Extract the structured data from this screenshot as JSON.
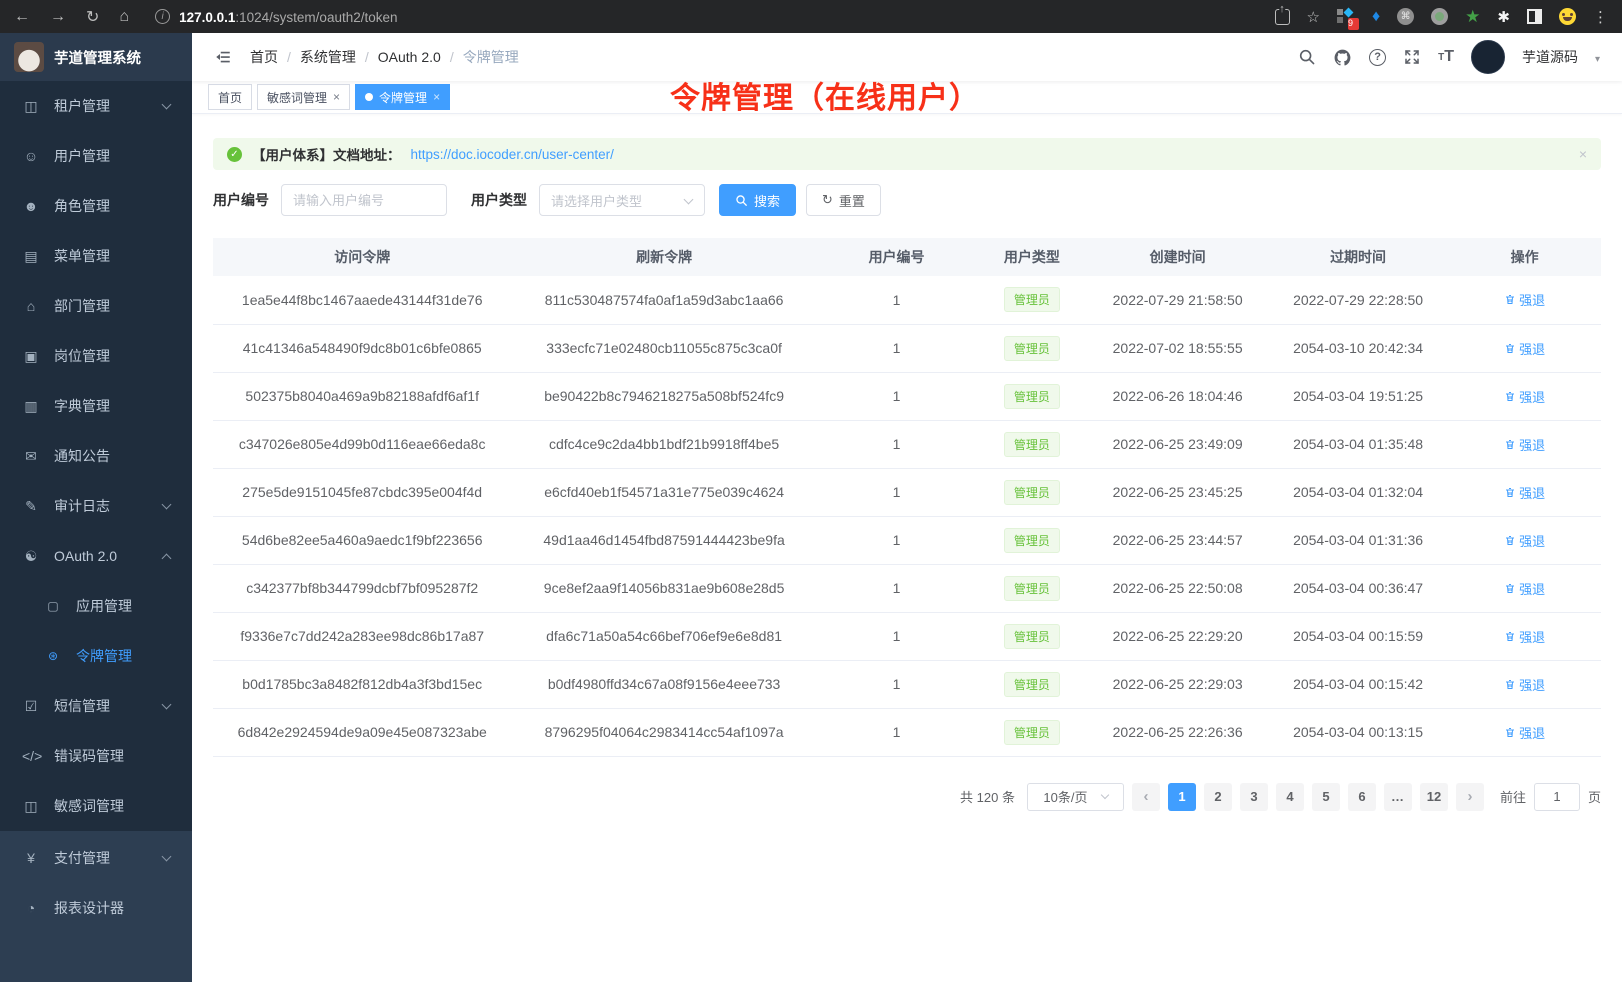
{
  "colors": {
    "accent": "#409eff",
    "success": "#67c23a",
    "annotation_red": "#f73018",
    "sidebar_bg": "#1f2d3d",
    "sidebar_bottom_bg": "#2d3e52"
  },
  "icons": {
    "back": "←",
    "forward": "→",
    "reload": "↻",
    "home": "⌂",
    "info": "i",
    "star": "☆",
    "kebab": "⋮",
    "close": "×",
    "prev": "‹",
    "next": "›",
    "check": "✓",
    "question": "?",
    "caret": "▾",
    "gem": "♦",
    "green_star": "★",
    "white_flower": "✱",
    "cmd": "⌘",
    "search_btn": "⌕",
    "reset_btn": "↻",
    "trash": "⌫"
  },
  "browser": {
    "url_host": "127.0.0.1",
    "url_path": ":1024/system/oauth2/token",
    "extension_badge": "9"
  },
  "sidebar": {
    "logo_title": "芋道管理系统",
    "items": [
      {
        "id": "tenant",
        "glyph": "◫",
        "label": "租户管理",
        "chevron": "down"
      },
      {
        "id": "user",
        "glyph": "☺",
        "label": "用户管理"
      },
      {
        "id": "role",
        "glyph": "☻",
        "label": "角色管理"
      },
      {
        "id": "menu",
        "glyph": "▤",
        "label": "菜单管理"
      },
      {
        "id": "dept",
        "glyph": "⌂",
        "label": "部门管理"
      },
      {
        "id": "post",
        "glyph": "▣",
        "label": "岗位管理"
      },
      {
        "id": "dict",
        "glyph": "▥",
        "label": "字典管理"
      },
      {
        "id": "notice",
        "glyph": "✉",
        "label": "通知公告"
      },
      {
        "id": "audit-log",
        "glyph": "✎",
        "label": "审计日志",
        "chevron": "down"
      },
      {
        "id": "oauth2",
        "glyph": "☯",
        "label": "OAuth 2.0",
        "chevron": "up"
      },
      {
        "id": "oauth2-app",
        "glyph": "▢",
        "label": "应用管理",
        "child": true
      },
      {
        "id": "oauth2-token",
        "glyph": "⊛",
        "label": "令牌管理",
        "child": true,
        "active": true
      },
      {
        "id": "sms",
        "glyph": "☑",
        "label": "短信管理",
        "chevron": "down"
      },
      {
        "id": "error-code",
        "glyph": "</>",
        "label": "错误码管理"
      },
      {
        "id": "sensitive-word",
        "glyph": "◫",
        "label": "敏感词管理"
      },
      {
        "id": "pay",
        "glyph": "¥",
        "label": "支付管理",
        "chevron": "down",
        "section": "bottom"
      },
      {
        "id": "report-designer",
        "glyph": "◔",
        "label": "报表设计器",
        "section": "bottom"
      }
    ]
  },
  "header": {
    "breadcrumb": [
      "首页",
      "系统管理",
      "OAuth 2.0",
      "令牌管理"
    ],
    "breadcrumb_separator": "/",
    "username": "芋道源码"
  },
  "tabs": [
    {
      "label": "首页",
      "closable": false,
      "active": false
    },
    {
      "label": "敏感词管理",
      "closable": true,
      "active": false
    },
    {
      "label": "令牌管理",
      "closable": true,
      "active": true
    }
  ],
  "annotation": "令牌管理（在线用户）",
  "alert": {
    "text": "【用户体系】文档地址：",
    "link": "https://doc.iocoder.cn/user-center/"
  },
  "filters": {
    "user_id_label": "用户编号",
    "user_id_placeholder": "请输入用户编号",
    "user_type_label": "用户类型",
    "user_type_placeholder": "请选择用户类型",
    "search_label": "搜索",
    "reset_label": "重置"
  },
  "table": {
    "headers": [
      "访问令牌",
      "刷新令牌",
      "用户编号",
      "用户类型",
      "创建时间",
      "过期时间",
      "操作"
    ],
    "action_label": "强退",
    "rows": [
      {
        "access": "1ea5e44f8bc1467aaede43144f31de76",
        "refresh": "811c530487574fa0af1a59d3abc1aa66",
        "user_id": "1",
        "user_type": "管理员",
        "created": "2022-07-29 21:58:50",
        "expires": "2022-07-29 22:28:50"
      },
      {
        "access": "41c41346a548490f9dc8b01c6bfe0865",
        "refresh": "333ecfc71e02480cb11055c875c3ca0f",
        "user_id": "1",
        "user_type": "管理员",
        "created": "2022-07-02 18:55:55",
        "expires": "2054-03-10 20:42:34"
      },
      {
        "access": "502375b8040a469a9b82188afdf6af1f",
        "refresh": "be90422b8c7946218275a508bf524fc9",
        "user_id": "1",
        "user_type": "管理员",
        "created": "2022-06-26 18:04:46",
        "expires": "2054-03-04 19:51:25"
      },
      {
        "access": "c347026e805e4d99b0d116eae66eda8c",
        "refresh": "cdfc4ce9c2da4bb1bdf21b9918ff4be5",
        "user_id": "1",
        "user_type": "管理员",
        "created": "2022-06-25 23:49:09",
        "expires": "2054-03-04 01:35:48"
      },
      {
        "access": "275e5de9151045fe87cbdc395e004f4d",
        "refresh": "e6cfd40eb1f54571a31e775e039c4624",
        "user_id": "1",
        "user_type": "管理员",
        "created": "2022-06-25 23:45:25",
        "expires": "2054-03-04 01:32:04"
      },
      {
        "access": "54d6be82ee5a460a9aedc1f9bf223656",
        "refresh": "49d1aa46d1454fbd87591444423be9fa",
        "user_id": "1",
        "user_type": "管理员",
        "created": "2022-06-25 23:44:57",
        "expires": "2054-03-04 01:31:36"
      },
      {
        "access": "c342377bf8b344799dcbf7bf095287f2",
        "refresh": "9ce8ef2aa9f14056b831ae9b608e28d5",
        "user_id": "1",
        "user_type": "管理员",
        "created": "2022-06-25 22:50:08",
        "expires": "2054-03-04 00:36:47"
      },
      {
        "access": "f9336e7c7dd242a283ee98dc86b17a87",
        "refresh": "dfa6c71a50a54c66bef706ef9e6e8d81",
        "user_id": "1",
        "user_type": "管理员",
        "created": "2022-06-25 22:29:20",
        "expires": "2054-03-04 00:15:59"
      },
      {
        "access": "b0d1785bc3a8482f812db4a3f3bd15ec",
        "refresh": "b0df4980ffd34c67a08f9156e4eee733",
        "user_id": "1",
        "user_type": "管理员",
        "created": "2022-06-25 22:29:03",
        "expires": "2054-03-04 00:15:42"
      },
      {
        "access": "6d842e2924594de9a09e45e087323abe",
        "refresh": "8796295f04064c2983414cc54af1097a",
        "user_id": "1",
        "user_type": "管理员",
        "created": "2022-06-25 22:26:36",
        "expires": "2054-03-04 00:13:15"
      }
    ]
  },
  "pagination": {
    "total_label": "共 120 条",
    "page_size_label": "10条/页",
    "pages": [
      "1",
      "2",
      "3",
      "4",
      "5",
      "6",
      "…",
      "12"
    ],
    "active_page": "1",
    "goto_label": "前往",
    "goto_value": "1",
    "page_unit_label": "页"
  }
}
